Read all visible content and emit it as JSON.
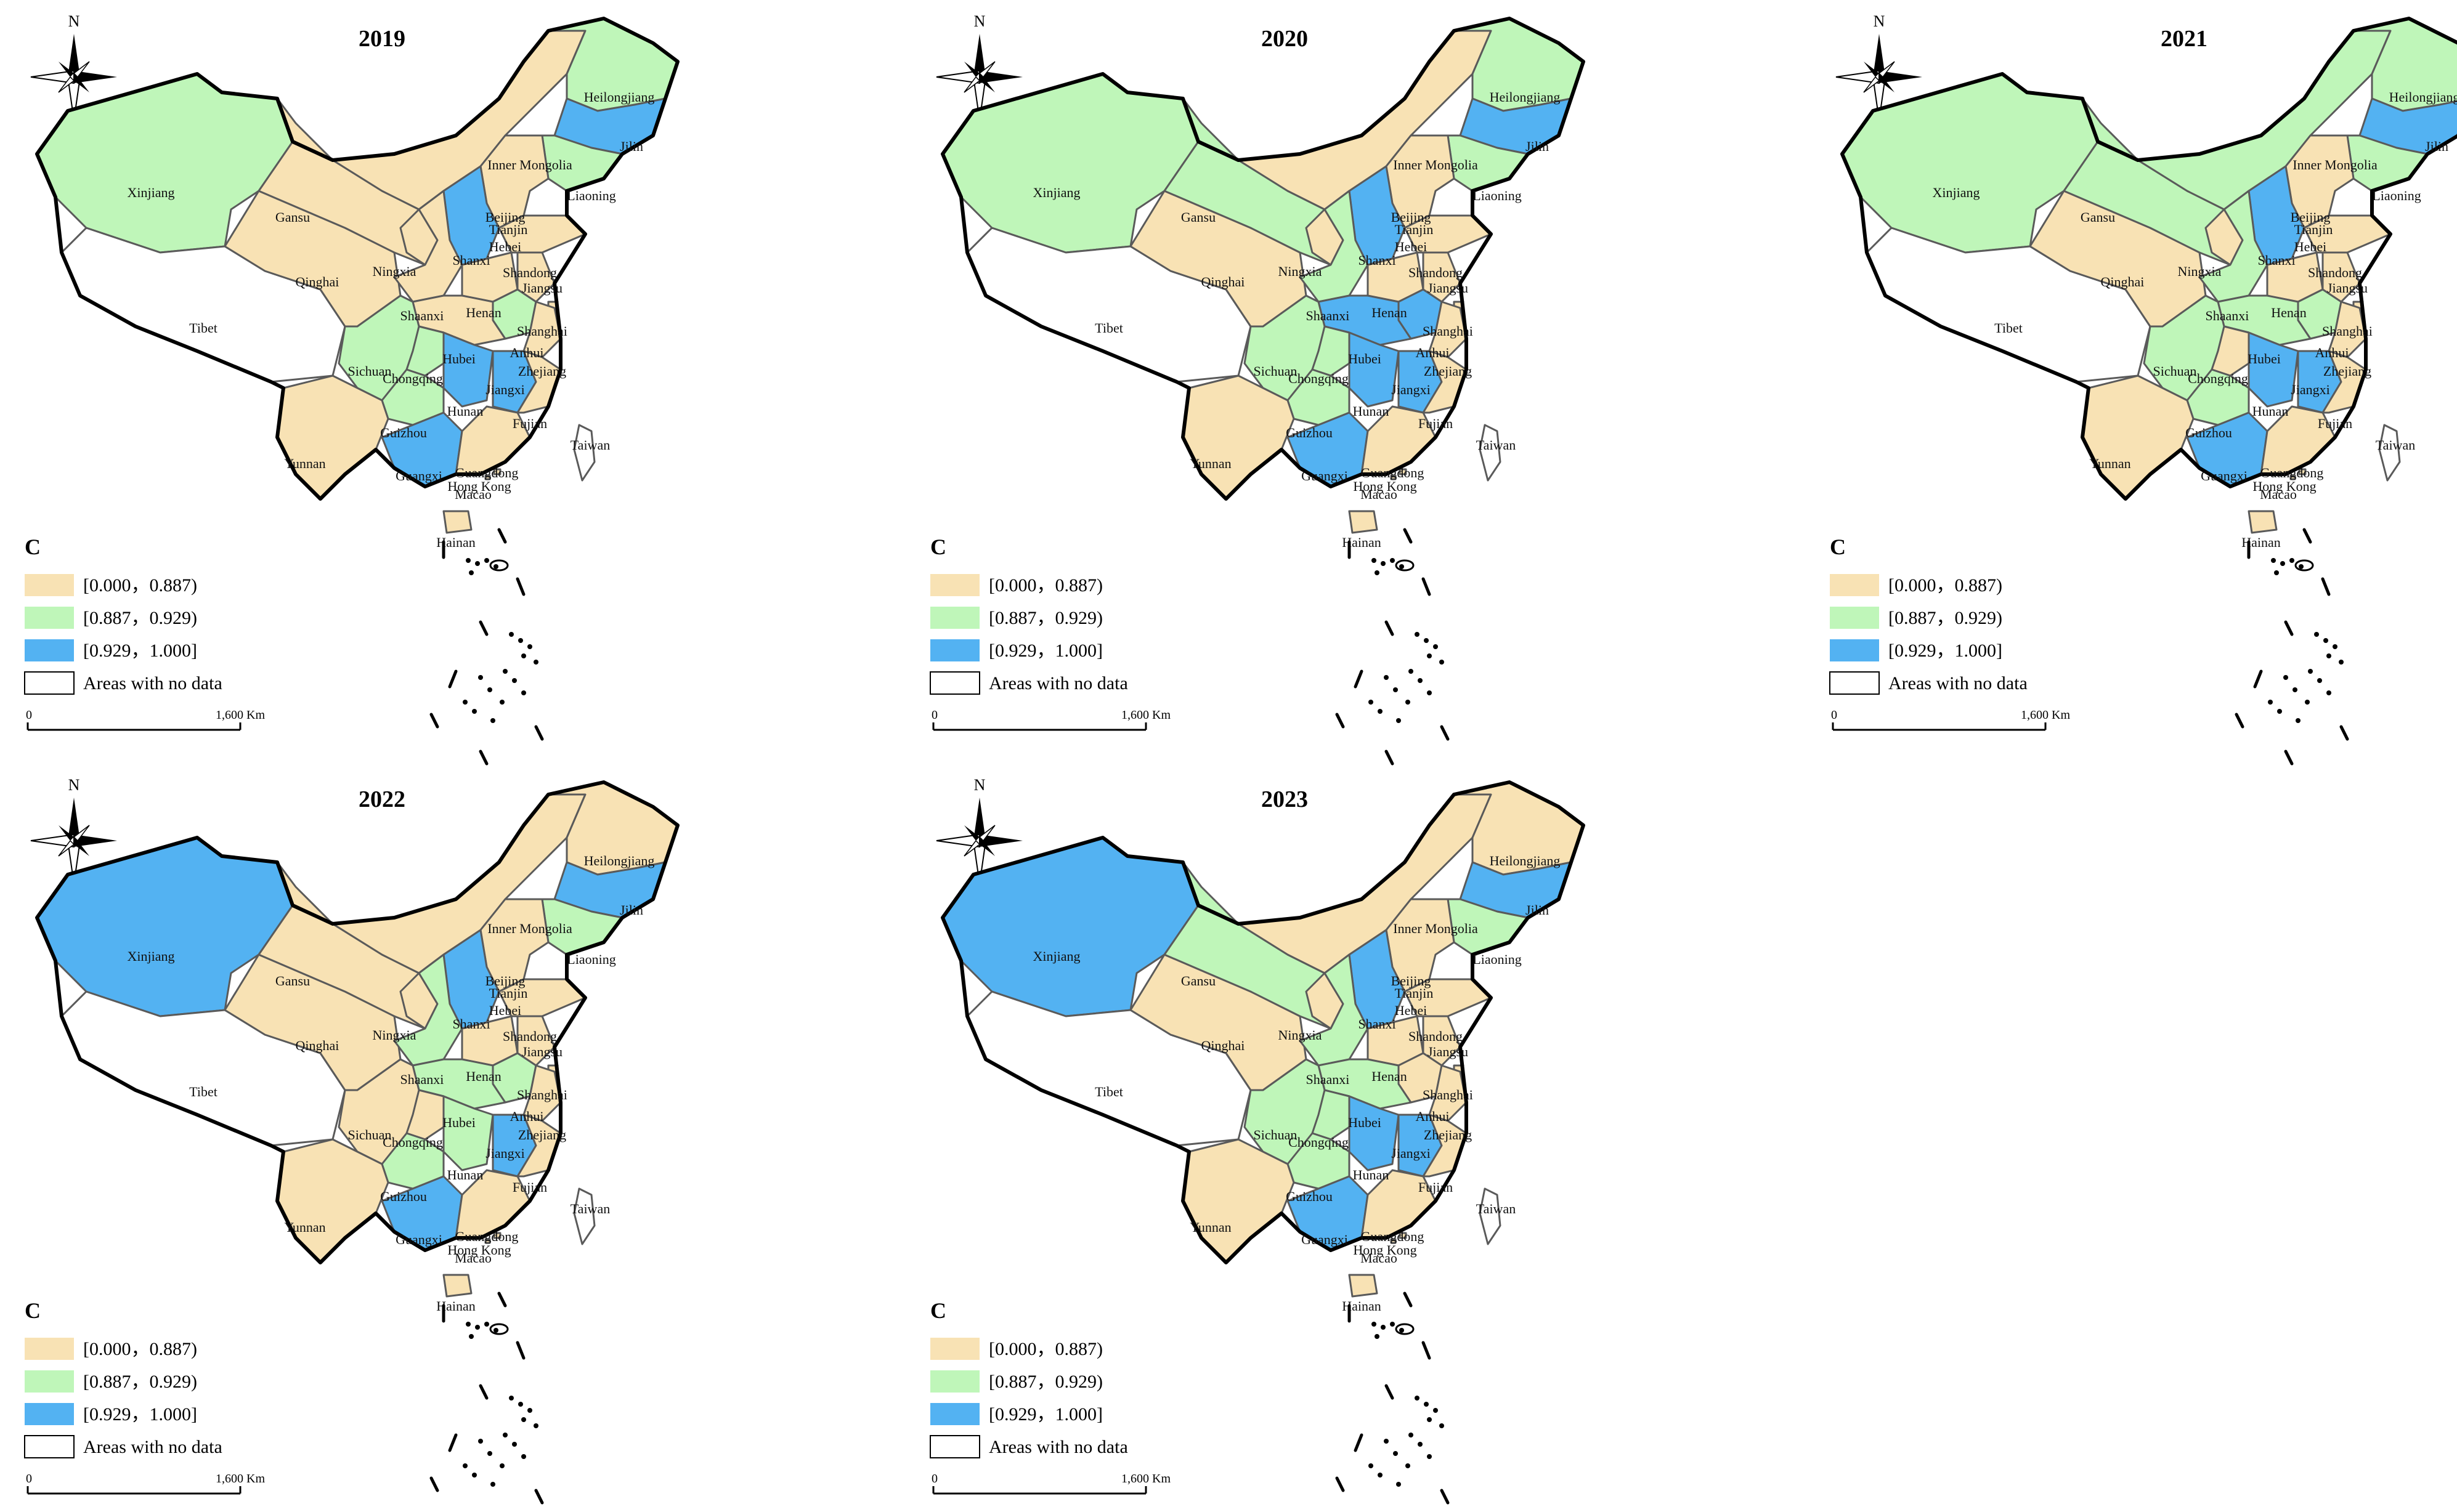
{
  "colors": {
    "low": "#f8e2b4",
    "mid": "#bff6b9",
    "high": "#53b2f2",
    "nodata": "#ffffff"
  },
  "compass_label": "N",
  "legend": {
    "title": "C",
    "items": [
      {
        "label": "[0.000，0.887)",
        "class": "low"
      },
      {
        "label": "[0.887，0.929)",
        "class": "mid"
      },
      {
        "label": "[0.929，1.000]",
        "class": "high"
      },
      {
        "label": "Areas with no data",
        "class": "nodata"
      }
    ]
  },
  "scale_bar": {
    "start": "0",
    "end": "1,600 Km"
  },
  "provinces": [
    "Xinjiang",
    "Tibet",
    "Qinghai",
    "Gansu",
    "Inner Mongolia",
    "Heilongjiang",
    "Jilin",
    "Liaoning",
    "Beijing",
    "Tianjin",
    "Hebei",
    "Shanxi",
    "Ningxia",
    "Shaanxi",
    "Shandong",
    "Henan",
    "Jiangsu",
    "Anhui",
    "Shanghai",
    "Zhejiang",
    "Hubei",
    "Sichuan",
    "Chongqing",
    "Hunan",
    "Jiangxi",
    "Fujian",
    "Guizhou",
    "Yunnan",
    "Guangxi",
    "Guangdong",
    "Hong Kong",
    "Macao",
    "Taiwan",
    "Hainan"
  ],
  "panels": [
    {
      "year": "2019",
      "classes": {
        "Xinjiang": "mid",
        "Tibet": "nodata",
        "Qinghai": "low",
        "Gansu": "low",
        "Inner Mongolia": "low",
        "Heilongjiang": "mid",
        "Jilin": "high",
        "Liaoning": "mid",
        "Beijing": "low",
        "Tianjin": "low",
        "Hebei": "low",
        "Shanxi": "high",
        "Ningxia": "low",
        "Shaanxi": "low",
        "Shandong": "low",
        "Henan": "low",
        "Jiangsu": "low",
        "Anhui": "mid",
        "Shanghai": "low",
        "Zhejiang": "low",
        "Hubei": "low",
        "Sichuan": "mid",
        "Chongqing": "mid",
        "Hunan": "high",
        "Jiangxi": "high",
        "Fujian": "low",
        "Guizhou": "mid",
        "Yunnan": "low",
        "Guangxi": "high",
        "Guangdong": "low",
        "Hong Kong": "low",
        "Macao": "low",
        "Taiwan": "nodata",
        "Hainan": "low"
      }
    },
    {
      "year": "2020",
      "classes": {
        "Xinjiang": "mid",
        "Tibet": "nodata",
        "Qinghai": "low",
        "Gansu": "mid",
        "Inner Mongolia": "low",
        "Heilongjiang": "mid",
        "Jilin": "high",
        "Liaoning": "mid",
        "Beijing": "low",
        "Tianjin": "low",
        "Hebei": "low",
        "Shanxi": "high",
        "Ningxia": "low",
        "Shaanxi": "mid",
        "Shandong": "low",
        "Henan": "low",
        "Jiangsu": "low",
        "Anhui": "high",
        "Shanghai": "low",
        "Zhejiang": "low",
        "Hubei": "high",
        "Sichuan": "mid",
        "Chongqing": "mid",
        "Hunan": "high",
        "Jiangxi": "high",
        "Fujian": "low",
        "Guizhou": "mid",
        "Yunnan": "low",
        "Guangxi": "high",
        "Guangdong": "low",
        "Hong Kong": "low",
        "Macao": "low",
        "Taiwan": "nodata",
        "Hainan": "low"
      }
    },
    {
      "year": "2021",
      "classes": {
        "Xinjiang": "mid",
        "Tibet": "nodata",
        "Qinghai": "low",
        "Gansu": "mid",
        "Inner Mongolia": "mid",
        "Heilongjiang": "mid",
        "Jilin": "high",
        "Liaoning": "mid",
        "Beijing": "low",
        "Tianjin": "low",
        "Hebei": "low",
        "Shanxi": "high",
        "Ningxia": "low",
        "Shaanxi": "mid",
        "Shandong": "low",
        "Henan": "low",
        "Jiangsu": "low",
        "Anhui": "mid",
        "Shanghai": "low",
        "Zhejiang": "low",
        "Hubei": "mid",
        "Sichuan": "mid",
        "Chongqing": "low",
        "Hunan": "high",
        "Jiangxi": "high",
        "Fujian": "low",
        "Guizhou": "mid",
        "Yunnan": "low",
        "Guangxi": "high",
        "Guangdong": "low",
        "Hong Kong": "low",
        "Macao": "low",
        "Taiwan": "nodata",
        "Hainan": "low"
      }
    },
    {
      "year": "2022",
      "classes": {
        "Xinjiang": "high",
        "Tibet": "nodata",
        "Qinghai": "low",
        "Gansu": "low",
        "Inner Mongolia": "low",
        "Heilongjiang": "low",
        "Jilin": "high",
        "Liaoning": "mid",
        "Beijing": "low",
        "Tianjin": "low",
        "Hebei": "low",
        "Shanxi": "high",
        "Ningxia": "low",
        "Shaanxi": "mid",
        "Shandong": "low",
        "Henan": "low",
        "Jiangsu": "low",
        "Anhui": "mid",
        "Shanghai": "low",
        "Zhejiang": "low",
        "Hubei": "mid",
        "Sichuan": "low",
        "Chongqing": "low",
        "Hunan": "mid",
        "Jiangxi": "high",
        "Fujian": "low",
        "Guizhou": "mid",
        "Yunnan": "low",
        "Guangxi": "high",
        "Guangdong": "low",
        "Hong Kong": "low",
        "Macao": "low",
        "Taiwan": "nodata",
        "Hainan": "low"
      }
    },
    {
      "year": "2023",
      "classes": {
        "Xinjiang": "high",
        "Tibet": "nodata",
        "Qinghai": "low",
        "Gansu": "mid",
        "Inner Mongolia": "low",
        "Heilongjiang": "low",
        "Jilin": "high",
        "Liaoning": "mid",
        "Beijing": "low",
        "Tianjin": "low",
        "Hebei": "low",
        "Shanxi": "high",
        "Ningxia": "low",
        "Shaanxi": "mid",
        "Shandong": "low",
        "Henan": "low",
        "Jiangsu": "low",
        "Anhui": "low",
        "Shanghai": "low",
        "Zhejiang": "low",
        "Hubei": "mid",
        "Sichuan": "mid",
        "Chongqing": "mid",
        "Hunan": "high",
        "Jiangxi": "high",
        "Fujian": "low",
        "Guizhou": "mid",
        "Yunnan": "low",
        "Guangxi": "high",
        "Guangdong": "low",
        "Hong Kong": "low",
        "Macao": "low",
        "Taiwan": "nodata",
        "Hainan": "low"
      }
    }
  ]
}
